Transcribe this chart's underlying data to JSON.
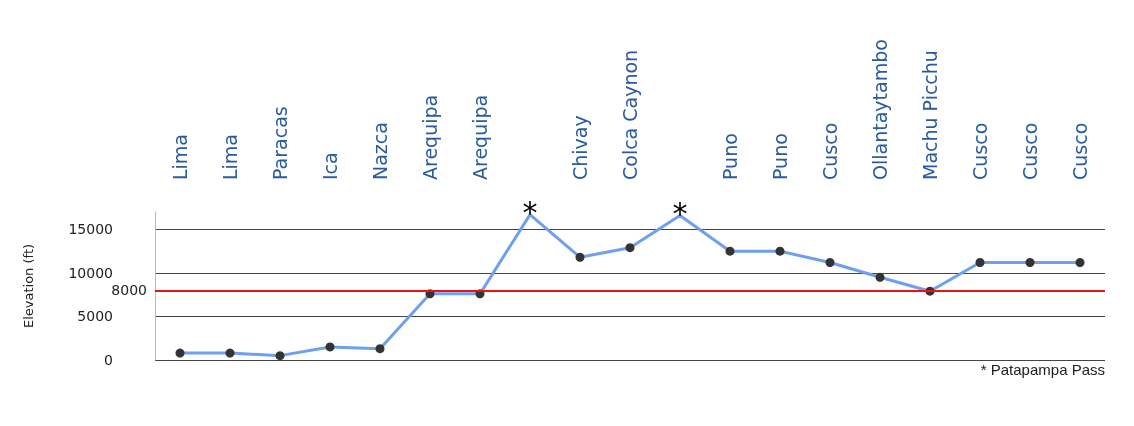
{
  "chart_data": {
    "type": "line",
    "ylabel": "Elevation (ft)",
    "categories": [
      "Lima",
      "Lima",
      "Paracas",
      "Ica",
      "Nazca",
      "Arequipa",
      "Arequipa",
      null,
      "Chivay",
      "Colca Caynon",
      null,
      "Puno",
      "Puno",
      "Cusco",
      "Ollantaytambo",
      "Machu Picchu",
      "Cusco",
      "Cusco",
      "Cusco"
    ],
    "series": [
      {
        "color": "#6fa0f0",
        "values": [
          800,
          800,
          500,
          1500,
          1300,
          7600,
          7600,
          16700,
          11800,
          12900,
          16600,
          12500,
          12500,
          11200,
          9500,
          7900,
          11200,
          11200,
          11200
        ]
      }
    ],
    "ylim": [
      0,
      17000
    ],
    "yticks": [
      0,
      5000,
      10000,
      15000
    ],
    "ref_lines": [
      {
        "axis": "y",
        "value": 8000,
        "label": "8000",
        "color": "#ee1111"
      }
    ],
    "annotations": [
      {
        "text": "*",
        "y": 16700
      },
      {
        "text": "*",
        "y": 16600
      },
      "* Patapampa Pass"
    ],
    "grid": "y",
    "marker": "circle",
    "line_style": "solid"
  }
}
